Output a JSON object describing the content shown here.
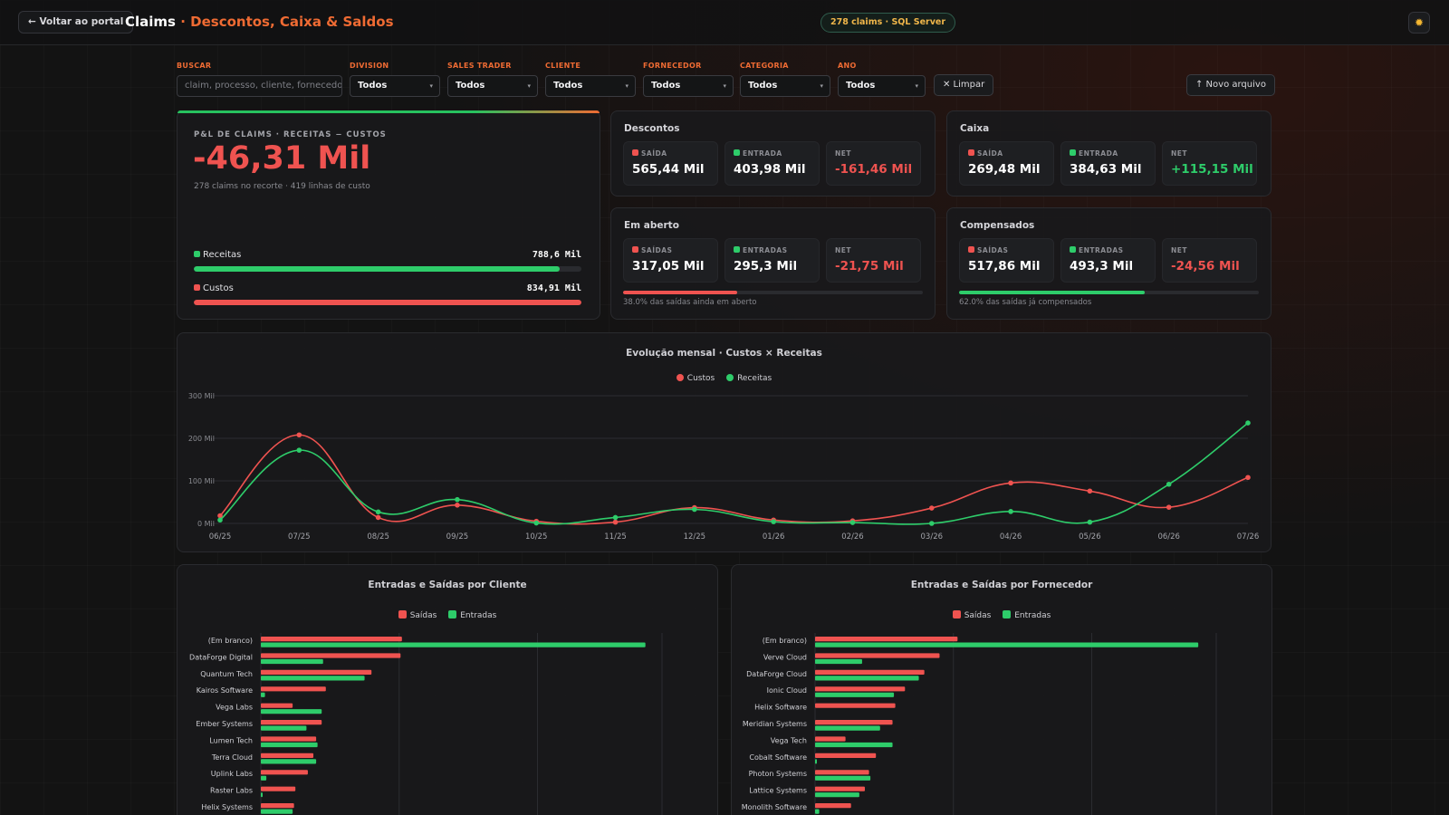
{
  "header": {
    "back_label": "← Voltar ao portal",
    "title_main": "Claims",
    "title_sep": " · ",
    "title_sub": "Descontos, Caixa & Saldos",
    "status": "278 claims · SQL Server",
    "theme_icon": "sun-icon"
  },
  "filters": {
    "search": {
      "label": "BUSCAR",
      "placeholder": "claim, processo, cliente, fornecedor"
    },
    "division": {
      "label": "DIVISION",
      "value": "Todos"
    },
    "sales_trader": {
      "label": "SALES TRADER",
      "value": "Todos"
    },
    "cliente": {
      "label": "CLIENTE",
      "value": "Todos"
    },
    "fornecedor": {
      "label": "FORNECEDOR",
      "value": "Todos"
    },
    "categoria": {
      "label": "CATEGORIA",
      "value": "Todos"
    },
    "ano": {
      "label": "ANO",
      "value": "Todos"
    },
    "clear_label": "✕ Limpar",
    "new_file_label": "↑ Novo arquivo"
  },
  "pl": {
    "kicker": "P&L DE CLAIMS · RECEITAS − CUSTOS",
    "value": "-46,31 Mil",
    "subtitle": "278 claims no recorte · 419 linhas de custo",
    "receitas_label": "Receitas",
    "receitas_value": "788,6 Mil",
    "receitas_fraction": 0.945,
    "custos_label": "Custos",
    "custos_value": "834,91 Mil",
    "custos_fraction": 1.0
  },
  "descontos": {
    "title": "Descontos",
    "saida_label": "SAÍDA",
    "saida_value": "565,44 Mil",
    "entrada_label": "ENTRADA",
    "entrada_value": "403,98 Mil",
    "net_label": "NET",
    "net_value": "-161,46 Mil"
  },
  "caixa": {
    "title": "Caixa",
    "saida_label": "SAÍDA",
    "saida_value": "269,48 Mil",
    "entrada_label": "ENTRADA",
    "entrada_value": "384,63 Mil",
    "net_label": "NET",
    "net_value": "+115,15 Mil"
  },
  "em_aberto": {
    "title": "Em aberto",
    "saida_label": "SAÍDAS",
    "saida_value": "317,05 Mil",
    "entrada_label": "ENTRADAS",
    "entrada_value": "295,3 Mil",
    "net_label": "NET",
    "net_value": "-21,75 Mil",
    "progress": 0.38,
    "note": "38.0% das saídas ainda em aberto"
  },
  "compensados": {
    "title": "Compensados",
    "saida_label": "SAÍDAS",
    "saida_value": "517,86 Mil",
    "entrada_label": "ENTRADAS",
    "entrada_value": "493,3 Mil",
    "net_label": "NET",
    "net_value": "-24,56 Mil",
    "progress": 0.62,
    "note": "62.0% das saídas já compensados"
  },
  "colors": {
    "red": "#ef5350",
    "green": "#2ecc6a",
    "orange": "#ef6b33"
  },
  "chart_data": [
    {
      "type": "line",
      "title": "Evolução mensal · Custos × Receitas",
      "x": [
        "06/25",
        "07/25",
        "08/25",
        "09/25",
        "10/25",
        "11/25",
        "12/25",
        "01/26",
        "02/26",
        "03/26",
        "04/26",
        "05/26",
        "06/26",
        "07/26"
      ],
      "ylim": [
        0,
        300
      ],
      "y_ticks": [
        "0 Mil",
        "100 Mil",
        "200 Mil",
        "300 Mil"
      ],
      "legend": "top-center",
      "series": [
        {
          "name": "Custos",
          "color": "#ef5350",
          "values": [
            18,
            208,
            14,
            43,
            5,
            3,
            37,
            8,
            6,
            36,
            95,
            76,
            38,
            108
          ]
        },
        {
          "name": "Receitas",
          "color": "#2ecc6a",
          "values": [
            8,
            172,
            27,
            56,
            1,
            14,
            33,
            4,
            2,
            0,
            28,
            3,
            92,
            236
          ]
        }
      ]
    },
    {
      "type": "bar",
      "orientation": "horizontal",
      "title": "Entradas e Saídas por Cliente",
      "legend": "top-center",
      "categories": [
        "(Em branco)",
        "DataForge Digital",
        "Quantum Tech",
        "Kairos Software",
        "Vega Labs",
        "Ember Systems",
        "Lumen Tech",
        "Terra Cloud",
        "Uplink Labs",
        "Raster Labs",
        "Helix Systems"
      ],
      "series": [
        {
          "name": "Saídas",
          "color": "#ef5350",
          "values": [
            102,
            101,
            80,
            47,
            23,
            44,
            40,
            38,
            34,
            25,
            24
          ]
        },
        {
          "name": "Entradas",
          "color": "#2ecc6a",
          "values": [
            278,
            45,
            75,
            3,
            44,
            33,
            41,
            40,
            4,
            1,
            23
          ]
        }
      ]
    },
    {
      "type": "bar",
      "orientation": "horizontal",
      "title": "Entradas e Saídas por Fornecedor",
      "legend": "top-center",
      "categories": [
        "(Em branco)",
        "Verve Cloud",
        "DataForge Cloud",
        "Ionic Cloud",
        "Helix Software",
        "Meridian Systems",
        "Vega Tech",
        "Cobalt Software",
        "Photon Systems",
        "Lattice Systems",
        "Monolith Software"
      ],
      "series": [
        {
          "name": "Saídas",
          "color": "#ef5350",
          "values": [
            103,
            90,
            79,
            65,
            58,
            56,
            22,
            44,
            39,
            36,
            26
          ]
        },
        {
          "name": "Entradas",
          "color": "#2ecc6a",
          "values": [
            277,
            34,
            75,
            57,
            0,
            47,
            56,
            1,
            40,
            32,
            3
          ]
        }
      ]
    }
  ]
}
